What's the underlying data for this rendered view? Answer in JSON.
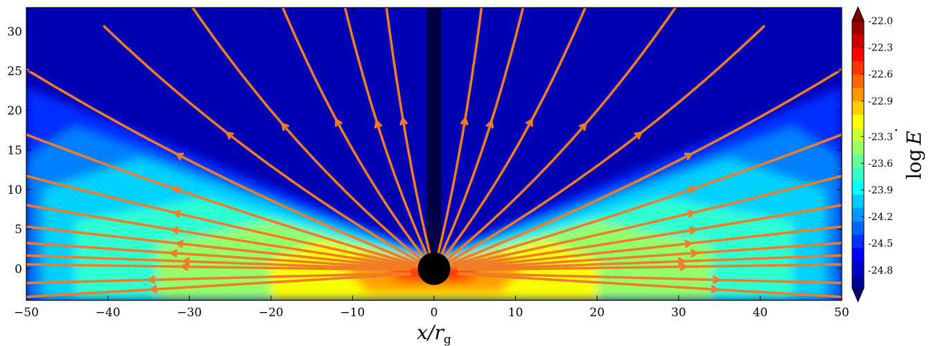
{
  "chart_data": {
    "type": "heatmap",
    "title": "",
    "xlabel": "x/r_g",
    "xlabel_parts": {
      "main": "x/r",
      "sub": "g"
    },
    "ylabel": "",
    "xlim": [
      -50,
      50
    ],
    "ylim": [
      -4,
      33
    ],
    "x_ticks": [
      -50,
      -40,
      -30,
      -20,
      -10,
      0,
      10,
      20,
      30,
      40,
      50
    ],
    "x_tick_labels": [
      "−50",
      "−40",
      "−30",
      "−20",
      "−10",
      "0",
      "10",
      "20",
      "30",
      "40",
      "50"
    ],
    "y_ticks": [
      0,
      5,
      10,
      15,
      20,
      25,
      30
    ],
    "y_tick_labels": [
      "0",
      "5",
      "10",
      "15",
      "20",
      "25",
      "30"
    ],
    "grid": false,
    "colorbar": {
      "label": "log Ė",
      "label_parts": {
        "prefix": "log",
        "symbol": "E",
        "accent": "˙"
      },
      "range": [
        -25.0,
        -22.0
      ],
      "ticks": [
        -22.0,
        -22.3,
        -22.6,
        -22.9,
        -23.3,
        -23.6,
        -23.9,
        -24.2,
        -24.5,
        -24.8
      ],
      "tick_labels": [
        "-22.0",
        "-22.3",
        "-22.6",
        "-22.9",
        "-23.3",
        "-23.6",
        "-23.9",
        "-24.2",
        "-24.5",
        "-24.8"
      ],
      "levels": 20,
      "extend": "both",
      "colormap": "jet"
    },
    "overlays": {
      "streamlines": {
        "color": "#f07c28",
        "description_arrows": "outward"
      },
      "black_hole": {
        "center": [
          0,
          0
        ],
        "radius": 2.0,
        "color": "#000000"
      },
      "jet_axis_dark_strip": true
    }
  }
}
